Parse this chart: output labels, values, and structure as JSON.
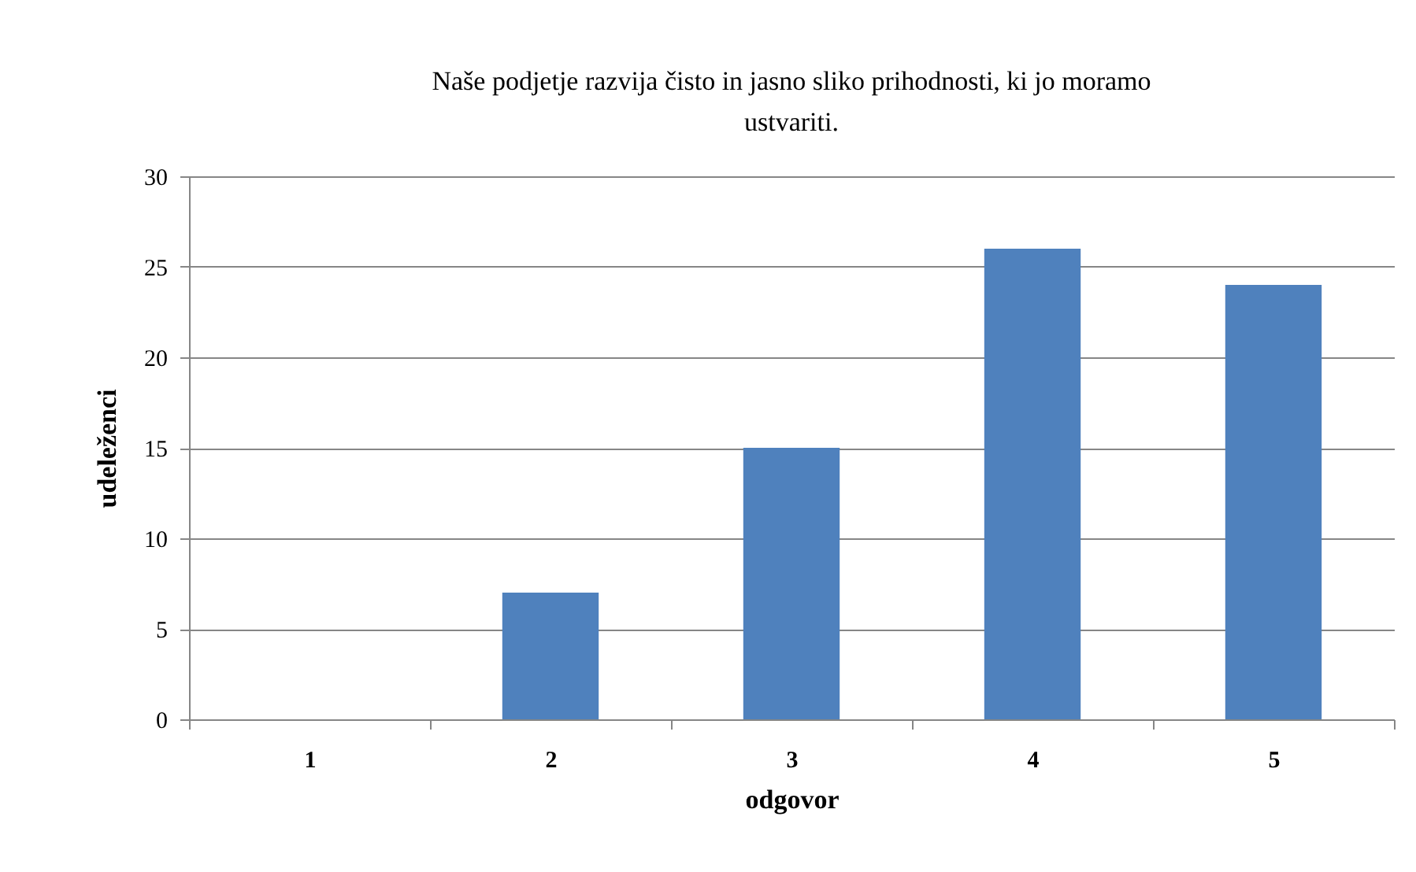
{
  "chart_data": {
    "type": "bar",
    "title": "Naše podjetje razvija čisto in jasno sliko prihodnosti, ki jo moramo ustvariti.",
    "xlabel": "odgovor",
    "ylabel": "udeleženci",
    "categories": [
      "1",
      "2",
      "3",
      "4",
      "5"
    ],
    "values": [
      0,
      7,
      15,
      26,
      24
    ],
    "color": "#4f81bd",
    "ylim": [
      0,
      30
    ],
    "yticks": [
      0,
      5,
      10,
      15,
      20,
      25,
      30
    ],
    "grid": "y"
  }
}
